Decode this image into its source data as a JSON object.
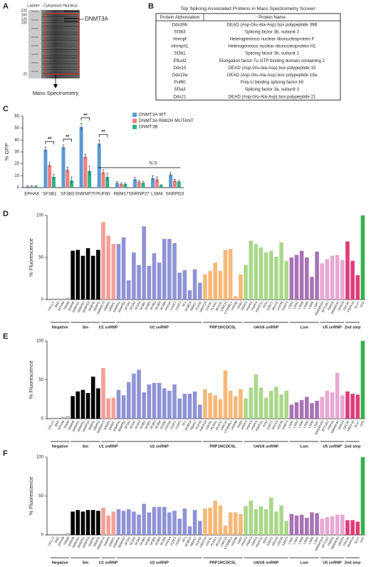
{
  "panel_a": {
    "label": "A",
    "lanes": [
      "Ladder",
      "Cytoplasm",
      "Nucleus"
    ],
    "ladder": [
      "220",
      "160",
      "120",
      "100",
      "25"
    ],
    "band": "DNMT3A",
    "output": "Mass Spectrometry"
  },
  "panel_b": {
    "label": "B",
    "title": "Top Splicing Associated Proteins in Mass Spectrometry Screen",
    "header": [
      "Protein Abbreviation",
      "Protein Name"
    ],
    "rows": [
      [
        "Ddx39b",
        "DEAD (Asp-Glu-Ala-Asp) box polypeptide 39B"
      ],
      [
        "Sf3b3",
        "Splicing factor 3b, subunit 3"
      ],
      [
        "Hnrnpf",
        "Heterogeneous nuclear ribonucleoprotein F"
      ],
      [
        "Hnrnph1",
        "Heterogeneous nuclear ribonucleoprotein H1"
      ],
      [
        "Sf3b1",
        "Splicing factor 3b, subunit 1"
      ],
      [
        "Eftud2",
        "Elongation factor Tu GTP binding domain containing 2"
      ],
      [
        "Ddx15",
        "DEAD (Asp-Glu-Ala-Asp) box polypeptide 15"
      ],
      [
        "Ddx19a",
        "DEAD (Asp-Glu-Ala-Asp) box polypeptide 19a"
      ],
      [
        "Puf60",
        "Poly-U binding splicing factor 60"
      ],
      [
        "Sf3a3",
        "Splicing factor 3a, subunit 3"
      ],
      [
        "Ddx21",
        "DEAD (Asp-Glu-Ala-Asp) box polypeptide 21"
      ]
    ]
  },
  "chart_data": [
    {
      "type": "grouped_bar",
      "panel_label": "C",
      "ylabel": "% GFP",
      "ylim": [
        0,
        60
      ],
      "yticks": [
        0,
        10,
        20,
        30,
        40,
        50,
        60
      ],
      "categories": [
        "EPHA8",
        "SF3B1",
        "SF3B3",
        "SNRNP70",
        "PUF60",
        "RBM17",
        "SNRNP27",
        "LSM4",
        "SNRPD3"
      ],
      "series": [
        {
          "name": "DNMT3A WT",
          "color": "#5b9bd5",
          "values": [
            1,
            32,
            34,
            51,
            37,
            4,
            7,
            8,
            11
          ],
          "errors": [
            0.5,
            2,
            2,
            3,
            3,
            1,
            1.5,
            2,
            1.5
          ]
        },
        {
          "name": "DNMT3A R882H MUTANT",
          "color": "#f07f7f",
          "values": [
            1,
            19,
            15,
            26,
            13,
            3,
            5,
            7,
            6
          ],
          "errors": [
            0.5,
            2,
            2,
            2,
            2,
            1,
            1,
            2,
            1
          ]
        },
        {
          "name": "DNMT3B",
          "color": "#2db38a",
          "values": [
            1,
            9,
            6,
            14,
            9,
            3,
            4,
            2,
            5
          ],
          "errors": [
            0.5,
            2,
            3,
            4,
            3,
            1,
            1,
            0.5,
            1
          ]
        }
      ],
      "significance": [
        "**",
        "**",
        "**",
        "**"
      ],
      "ns_label": "N.S"
    },
    {
      "type": "bar",
      "panel_label": "D",
      "ylabel": "% Fluorescence",
      "ylim": [
        0,
        100
      ],
      "yticks": [
        0,
        50,
        100
      ],
      "series": [
        {
          "name": "Negative",
          "color": "#bdbdbd",
          "categories": [
            "CELLS",
            "BAD",
            "EPHA8",
            "TRIM8"
          ],
          "values": [
            1,
            1,
            1,
            2
          ]
        },
        {
          "name": "Sm",
          "color": "#000000",
          "categories": [
            "SNRPB",
            "SNRPD1",
            "SNRPD2",
            "SNRPD3",
            "SNRPE",
            "SNRPG"
          ],
          "values": [
            58,
            59,
            52,
            61,
            52,
            59
          ]
        },
        {
          "name": "U1 snRNP",
          "color": "#f4a097",
          "categories": [
            "SNRNP70",
            "SNRPA",
            "SNRPC"
          ],
          "values": [
            92,
            76,
            66
          ]
        },
        {
          "name": "U2 snRNP",
          "color": "#8f93d6",
          "categories": [
            "SNRPA1",
            "SNRPB2",
            "SF3A1",
            "SF3A2",
            "SF3A3",
            "SF3B1",
            "SF3B2",
            "SF3B3",
            "SF3B4",
            "SF3B5",
            "PHF5A",
            "U2AF1",
            "U2AF2",
            "SF1",
            "SF3B14",
            "RBM17",
            "PUF60"
          ],
          "values": [
            66,
            74,
            23,
            56,
            41,
            87,
            40,
            55,
            44,
            72,
            72,
            67,
            32,
            35,
            11,
            36,
            20
          ]
        },
        {
          "name": "PRP19/CDC5L",
          "color": "#f9b878",
          "categories": [
            "PRPF19",
            "CDC5L",
            "PLRG1",
            "BCAS2",
            "CWC15",
            "CTNNBL1",
            "HSPA8",
            "XAB2"
          ],
          "values": [
            30,
            34,
            44,
            34,
            59,
            60,
            4,
            30
          ]
        },
        {
          "name": "U4/U6 snRNP",
          "color": "#a9d88a",
          "categories": [
            "PRPF3",
            "PRPF4",
            "PRPF6",
            "PRPF31",
            "PPIH",
            "SART1",
            "SNU13",
            "USP39",
            "SART3"
          ],
          "values": [
            41,
            70,
            66,
            62,
            56,
            58,
            51,
            68,
            46
          ]
        },
        {
          "name": "Lsm",
          "color": "#a972b5",
          "categories": [
            "LSM2",
            "LSM3",
            "LSM4",
            "LSM5",
            "LSM6",
            "LSM7"
          ],
          "values": [
            50,
            53,
            58,
            50,
            27,
            57
          ]
        },
        {
          "name": "U5 snRNP",
          "color": "#e8a8d4",
          "categories": [
            "SNRNP200",
            "EFTUD2",
            "PRPF8",
            "SNRNP40",
            "DDX23"
          ],
          "values": [
            43,
            48,
            52,
            53,
            47
          ]
        },
        {
          "name": "2nd step",
          "color": "#e03c78",
          "categories": [
            "CDC40",
            "PRPF18",
            "SLU7"
          ],
          "values": [
            69,
            46,
            29
          ]
        },
        {
          "color": "#34b24a",
          "categories": [
            "GFP"
          ],
          "values": [
            100
          ]
        }
      ]
    },
    {
      "type": "bar",
      "panel_label": "E",
      "ylabel": "% Fluorescence",
      "ylim": [
        0,
        100
      ],
      "yticks": [
        0,
        50,
        100
      ],
      "series": [
        {
          "name": "Negative",
          "color": "#bdbdbd",
          "categories": [
            "CELLS",
            "BAD",
            "EPHA8",
            "TRIM8"
          ],
          "values": [
            1,
            1,
            2,
            3
          ]
        },
        {
          "name": "Sm",
          "color": "#000000",
          "categories": [
            "SNRPB",
            "SNRPD1",
            "SNRPD2",
            "SNRPD3",
            "SNRPE",
            "SNRPG"
          ],
          "values": [
            29,
            35,
            37,
            33,
            54,
            39
          ]
        },
        {
          "name": "U1 snRNP",
          "color": "#f4a097",
          "categories": [
            "SNRNP70",
            "SNRPA",
            "SNRPC"
          ],
          "values": [
            65,
            26,
            27
          ]
        },
        {
          "name": "U2 snRNP",
          "color": "#8f93d6",
          "categories": [
            "SNRPA1",
            "SNRPB2",
            "SF3A1",
            "SF3A2",
            "SF3A3",
            "SF3B1",
            "SF3B2",
            "SF3B3",
            "SF3B4",
            "SF3B5",
            "PHF5A",
            "U2AF1",
            "U2AF2",
            "SF1",
            "SF3B14",
            "RBM17",
            "PUF60"
          ],
          "values": [
            37,
            30,
            47,
            58,
            63,
            34,
            44,
            46,
            46,
            39,
            36,
            44,
            26,
            32,
            32,
            35,
            18
          ]
        },
        {
          "name": "PRP19/CDC5L",
          "color": "#f9b878",
          "categories": [
            "PRPF19",
            "CDC5L",
            "PLRG1",
            "BCAS2",
            "CWC15",
            "CTNNBL1",
            "HSPA8",
            "XAB2"
          ],
          "values": [
            38,
            33,
            30,
            25,
            62,
            36,
            29,
            38
          ]
        },
        {
          "name": "U4/U6 snRNP",
          "color": "#a9d88a",
          "categories": [
            "PRPF3",
            "PRPF4",
            "PRPF6",
            "PRPF31",
            "PPIH",
            "SART1",
            "SNU13",
            "USP39",
            "SART3"
          ],
          "values": [
            26,
            40,
            57,
            40,
            27,
            36,
            41,
            31,
            36
          ]
        },
        {
          "name": "Lsm",
          "color": "#a972b5",
          "categories": [
            "LSM2",
            "LSM3",
            "LSM4",
            "LSM5",
            "LSM6",
            "LSM7"
          ],
          "values": [
            18,
            21,
            24,
            28,
            20,
            23
          ]
        },
        {
          "name": "U5 snRNP",
          "color": "#e8a8d4",
          "categories": [
            "SNRNP200",
            "EFTUD2",
            "PRPF8",
            "SNRNP40",
            "DDX23"
          ],
          "values": [
            28,
            36,
            34,
            59,
            30
          ]
        },
        {
          "name": "2nd step",
          "color": "#e03c78",
          "categories": [
            "CDC40",
            "PRPF18",
            "SLU7"
          ],
          "values": [
            35,
            32,
            31
          ]
        },
        {
          "color": "#34b24a",
          "categories": [
            "GFP"
          ],
          "values": [
            100
          ]
        }
      ]
    },
    {
      "type": "bar",
      "panel_label": "F",
      "ylabel": "% Fluorescence",
      "ylim": [
        0,
        100
      ],
      "yticks": [
        0,
        50,
        100
      ],
      "series": [
        {
          "name": "Negative",
          "color": "#bdbdbd",
          "categories": [
            "CELLS",
            "BAD",
            "EPHA8",
            "TRIM8"
          ],
          "values": [
            1,
            1,
            1,
            2
          ]
        },
        {
          "name": "Sm",
          "color": "#000000",
          "categories": [
            "SNRPB",
            "SNRPD1",
            "SNRPD2",
            "SNRPD3",
            "SNRPE",
            "SNRPG"
          ],
          "values": [
            30,
            32,
            30,
            32,
            32,
            31
          ]
        },
        {
          "name": "U1 snRNP",
          "color": "#f4a097",
          "categories": [
            "SNRNP70",
            "SNRPA",
            "SNRPC"
          ],
          "values": [
            35,
            25,
            30
          ]
        },
        {
          "name": "U2 snRNP",
          "color": "#8f93d6",
          "categories": [
            "SNRPA1",
            "SNRPB2",
            "SF3A1",
            "SF3A2",
            "SF3A3",
            "SF3B1",
            "SF3B2",
            "SF3B3",
            "SF3B4",
            "SF3B5",
            "PHF5A",
            "U2AF1",
            "U2AF2",
            "SF1",
            "SF3B14",
            "RBM17",
            "PUF60"
          ],
          "values": [
            33,
            31,
            33,
            30,
            26,
            40,
            29,
            36,
            36,
            36,
            29,
            31,
            21,
            34,
            11,
            32,
            18
          ]
        },
        {
          "name": "PRP19/CDC5L",
          "color": "#f9b878",
          "categories": [
            "PRPF19",
            "CDC5L",
            "PLRG1",
            "BCAS2",
            "CWC15",
            "CTNNBL1",
            "HSPA8",
            "XAB2"
          ],
          "values": [
            34,
            35,
            44,
            38,
            12,
            29,
            29,
            27
          ]
        },
        {
          "name": "U4/U6 snRNP",
          "color": "#a9d88a",
          "categories": [
            "PRPF3",
            "PRPF4",
            "PRPF6",
            "PRPF31",
            "PPIH",
            "SART1",
            "SNU13",
            "USP39",
            "SART3"
          ],
          "values": [
            37,
            44,
            33,
            37,
            33,
            48,
            30,
            38,
            18
          ]
        },
        {
          "name": "Lsm",
          "color": "#a972b5",
          "categories": [
            "LSM2",
            "LSM3",
            "LSM4",
            "LSM5",
            "LSM6",
            "LSM7"
          ],
          "values": [
            27,
            25,
            26,
            22,
            29,
            28
          ]
        },
        {
          "name": "U5 snRNP",
          "color": "#e8a8d4",
          "categories": [
            "SNRNP200",
            "EFTUD2",
            "PRPF8",
            "SNRNP40",
            "DDX23"
          ],
          "values": [
            21,
            23,
            24,
            26,
            26
          ]
        },
        {
          "name": "2nd step",
          "color": "#e03c78",
          "categories": [
            "CDC40",
            "PRPF18",
            "SLU7"
          ],
          "values": [
            19,
            19,
            17
          ]
        },
        {
          "color": "#34b24a",
          "categories": [
            "GFP"
          ],
          "values": [
            100
          ]
        }
      ]
    }
  ]
}
